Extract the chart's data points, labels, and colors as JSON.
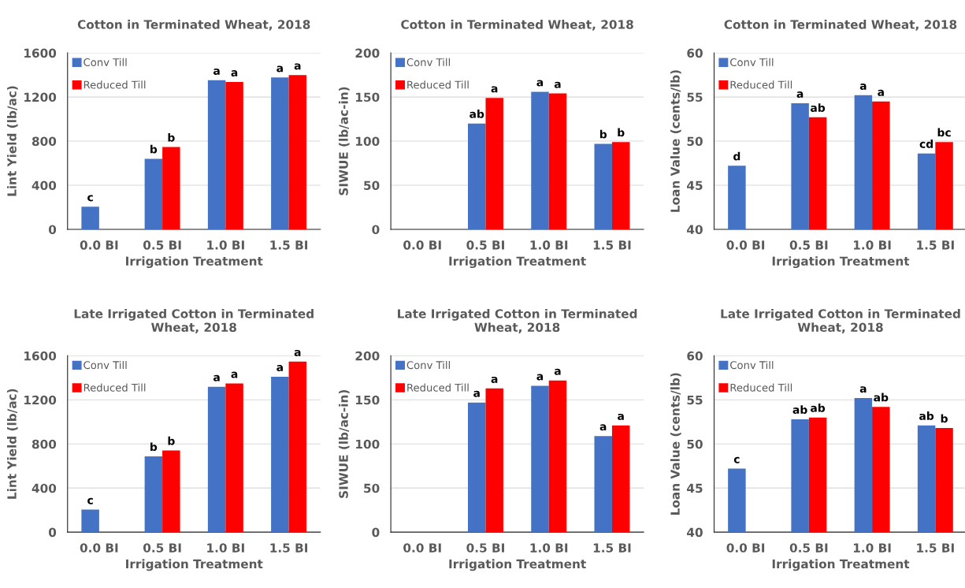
{
  "chart_data": [
    {
      "type": "bar",
      "title": "Cotton in Terminated Wheat, 2018",
      "xlabel": "Irrigation Treatment",
      "ylabel": "Lint Yield (lb/ac)",
      "categories": [
        "0.0 BI",
        "0.5 BI",
        "1.0 BI",
        "1.5 BI"
      ],
      "ylim": [
        0,
        1600
      ],
      "yticks": [
        0,
        400,
        800,
        1200,
        1600
      ],
      "grid": "y",
      "legend": "top left",
      "series": [
        {
          "name": "Conv Till",
          "color": "#4472c4",
          "values": [
            205,
            640,
            1352,
            1377
          ],
          "value_labels": [
            "c",
            "b",
            "a",
            "a"
          ]
        },
        {
          "name": "Reduced Till",
          "color": "#ff0000",
          "values": [
            null,
            746,
            1337,
            1399
          ],
          "value_labels": [
            null,
            "b",
            "a",
            "a"
          ]
        }
      ]
    },
    {
      "type": "bar",
      "title": "Cotton in Terminated Wheat, 2018",
      "xlabel": "Irrigation Treatment",
      "ylabel": "SIWUE (lb/ac-in)",
      "categories": [
        "0.0 BI",
        "0.5 BI",
        "1.0 BI",
        "1.5 BI"
      ],
      "ylim": [
        0,
        200
      ],
      "yticks": [
        0,
        50,
        100,
        150,
        200
      ],
      "grid": "y",
      "legend": "top left",
      "series": [
        {
          "name": "Conv Till",
          "color": "#4472c4",
          "values": [
            null,
            120,
            156,
            97
          ],
          "value_labels": [
            null,
            "ab",
            "a",
            "b"
          ]
        },
        {
          "name": "Reduced Till",
          "color": "#ff0000",
          "values": [
            null,
            149,
            154,
            99
          ],
          "value_labels": [
            null,
            "a",
            "a",
            "b"
          ]
        }
      ]
    },
    {
      "type": "bar",
      "title": "Cotton in Terminated Wheat, 2018",
      "xlabel": "Irrigation Treatment",
      "ylabel": "Loan Value (cents/lb)",
      "categories": [
        "0.0 BI",
        "0.5 BI",
        "1.0 BI",
        "1.5 BI"
      ],
      "ylim": [
        40,
        60
      ],
      "yticks": [
        40,
        45,
        50,
        55,
        60
      ],
      "grid": "y",
      "legend": "top left",
      "series": [
        {
          "name": "Conv Till",
          "color": "#4472c4",
          "values": [
            47.2,
            54.3,
            55.2,
            48.6
          ],
          "value_labels": [
            "d",
            "a",
            "a",
            "cd"
          ]
        },
        {
          "name": "Reduced Till",
          "color": "#ff0000",
          "values": [
            null,
            52.7,
            54.5,
            49.9
          ],
          "value_labels": [
            null,
            "ab",
            "a",
            "bc"
          ]
        }
      ]
    },
    {
      "type": "bar",
      "title": "Late Irrigated Cotton in Terminated Wheat, 2018",
      "xlabel": "Irrigation Treatment",
      "ylabel": "Lint Yield (lb/ac)",
      "categories": [
        "0.0 BI",
        "0.5 BI",
        "1.0 BI",
        "1.5 BI"
      ],
      "ylim": [
        0,
        1600
      ],
      "yticks": [
        0,
        400,
        800,
        1200,
        1600
      ],
      "grid": "y",
      "legend": "top left",
      "series": [
        {
          "name": "Conv Till",
          "color": "#4472c4",
          "values": [
            204,
            687,
            1319,
            1410
          ],
          "value_labels": [
            "c",
            "b",
            "a",
            "a"
          ]
        },
        {
          "name": "Reduced Till",
          "color": "#ff0000",
          "values": [
            null,
            741,
            1349,
            1547
          ],
          "value_labels": [
            null,
            "b",
            "a",
            "a"
          ]
        }
      ]
    },
    {
      "type": "bar",
      "title": "Late Irrigated Cotton in Terminated Wheat, 2018",
      "xlabel": "Irrigation Treatment",
      "ylabel": "SIWUE (lb/ac-in)",
      "categories": [
        "0.0 BI",
        "0.5 BI",
        "1.0 BI",
        "1.5 BI"
      ],
      "ylim": [
        0,
        200
      ],
      "yticks": [
        0,
        50,
        100,
        150,
        200
      ],
      "grid": "y",
      "legend": "top left",
      "series": [
        {
          "name": "Conv Till",
          "color": "#4472c4",
          "values": [
            null,
            147,
            166,
            109
          ],
          "value_labels": [
            null,
            "a",
            "a",
            "a"
          ]
        },
        {
          "name": "Reduced Till",
          "color": "#ff0000",
          "values": [
            null,
            163,
            172,
            121
          ],
          "value_labels": [
            null,
            "a",
            "a",
            "a"
          ]
        }
      ]
    },
    {
      "type": "bar",
      "title": "Late Irrigated Cotton in Terminated Wheat, 2018",
      "xlabel": "Irrigation Treatment",
      "ylabel": "Loan Value (cents/lb)",
      "categories": [
        "0.0 BI",
        "0.5 BI",
        "1.0 BI",
        "1.5 BI"
      ],
      "ylim": [
        40,
        60
      ],
      "yticks": [
        40,
        45,
        50,
        55,
        60
      ],
      "grid": "y",
      "legend": "top left",
      "series": [
        {
          "name": "Conv Till",
          "color": "#4472c4",
          "values": [
            47.2,
            52.8,
            55.2,
            52.1
          ],
          "value_labels": [
            "c",
            "ab",
            "a",
            "ab"
          ]
        },
        {
          "name": "Reduced Till",
          "color": "#ff0000",
          "values": [
            null,
            53.0,
            54.2,
            51.8
          ],
          "value_labels": [
            null,
            "ab",
            "ab",
            "b"
          ]
        }
      ]
    }
  ]
}
